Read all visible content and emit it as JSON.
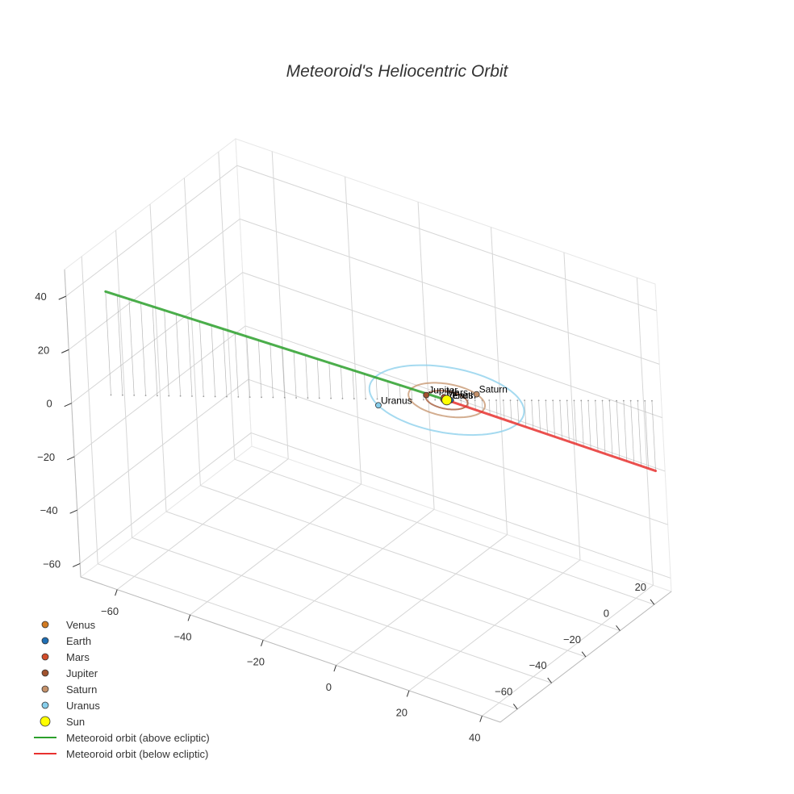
{
  "chart_data": {
    "type": "scatter",
    "title": "Meteoroid's Heliocentric Orbit",
    "axes": {
      "x": {
        "range": [
          -70,
          45
        ],
        "ticks": [
          -60,
          -40,
          -20,
          0,
          20,
          40
        ],
        "label": ""
      },
      "y": {
        "range": [
          -70,
          30
        ],
        "ticks": [
          -60,
          -40,
          -20,
          0,
          20
        ],
        "label": ""
      },
      "z": {
        "range": [
          -65,
          50
        ],
        "ticks": [
          -60,
          -40,
          -20,
          0,
          20,
          40
        ],
        "label": ""
      }
    },
    "grid": true,
    "legend_position": "bottom-left",
    "bodies": [
      {
        "name": "Venus",
        "x": -0.5,
        "y": -0.55,
        "z": 0,
        "color": "#d17a22"
      },
      {
        "name": "Earth",
        "x": 0.7,
        "y": 0.7,
        "z": 0,
        "color": "#1f6fb4"
      },
      {
        "name": "Mars",
        "x": -1.2,
        "y": 1.0,
        "z": 0,
        "color": "#d24c2a"
      },
      {
        "name": "Jupiter",
        "x": -5.1,
        "y": -1.1,
        "z": 0,
        "color": "#a0522d"
      },
      {
        "name": "Saturn",
        "x": 4.2,
        "y": 8.5,
        "z": 0,
        "color": "#c4916a"
      },
      {
        "name": "Uranus",
        "x": -11.6,
        "y": -15.2,
        "z": 0,
        "color": "#87ceeb"
      },
      {
        "name": "Sun",
        "x": 0,
        "y": 0,
        "z": 0,
        "color": "#ffff00"
      }
    ],
    "orbits": [
      {
        "name": "Venus",
        "radius": 0.72,
        "color": "#d17a22"
      },
      {
        "name": "Earth",
        "radius": 1.0,
        "color": "#1f6fb4"
      },
      {
        "name": "Mars",
        "radius": 1.52,
        "color": "#d24c2a"
      },
      {
        "name": "Jupiter",
        "radius": 5.2,
        "color": "#a0522d"
      },
      {
        "name": "Saturn",
        "radius": 9.5,
        "color": "#c4916a"
      },
      {
        "name": "Uranus",
        "radius": 19.2,
        "color": "#87ceeb"
      }
    ],
    "series": [
      {
        "name": "Meteoroid orbit (above ecliptic)",
        "color": "#2ca02c",
        "x": [
          0,
          -64.6
        ],
        "y": [
          0,
          -58.5
        ],
        "z": [
          0,
          38.7
        ]
      },
      {
        "name": "Meteoroid orbit (below ecliptic)",
        "color": "#e8312f",
        "x": [
          0,
          38.9
        ],
        "y": [
          0,
          37.0
        ],
        "z": [
          0,
          -26.2
        ]
      }
    ],
    "drop_lines": true,
    "drop_line_count": 29
  }
}
